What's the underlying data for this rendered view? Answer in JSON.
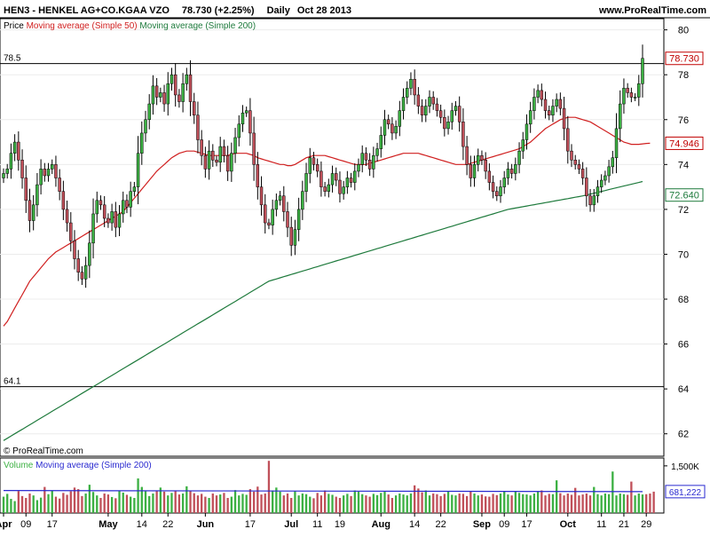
{
  "header": {
    "title": "HEN3 - HENKEL AG+CO.KGAA VZO",
    "last_price": "78.730 (+2.25%)",
    "interval": "Daily",
    "date": "Oct 28 2013",
    "site": "www.ProRealTime.com"
  },
  "price_panel": {
    "legend_label": "Price",
    "ma50_label": "Moving average (Simple 50)",
    "ma200_label": "Moving average (Simple 200)",
    "watermark": "© ProRealTime.com"
  },
  "volume_panel": {
    "legend_label": "Volume",
    "ma_label": "Moving average (Simple 200)"
  },
  "colors": {
    "up": "#3cb043",
    "down": "#c0505a",
    "ma50": "#d02020",
    "ma200": "#1e7a3c",
    "vol_ma": "#2a2ad0",
    "last_price_tag": "#c00000",
    "ma50_tag": "#c00000",
    "ma200_tag": "#1e7a3c"
  },
  "chart_data": [
    {
      "type": "candlestick",
      "panel": "price",
      "ylim": [
        61,
        80.5
      ],
      "y_ticks": [
        62,
        64,
        66,
        68,
        70,
        72,
        74,
        76,
        78,
        80
      ],
      "x_labels": [
        "Apr",
        "09",
        "17",
        "May",
        "14",
        "22",
        "Jun",
        "17",
        "Jul",
        "11",
        "19",
        "Aug",
        "14",
        "22",
        "Sep",
        "09",
        "17",
        "Oct",
        "11",
        "21",
        "29"
      ],
      "x_label_index": [
        0,
        6,
        13,
        28,
        37,
        44,
        54,
        66,
        77,
        84,
        90,
        101,
        110,
        117,
        128,
        134,
        140,
        151,
        160,
        166,
        172
      ],
      "close": [
        73.6,
        73.8,
        74.5,
        75.0,
        74.2,
        73.4,
        72.4,
        71.5,
        72.2,
        73.1,
        73.8,
        73.5,
        73.8,
        74.0,
        73.4,
        72.8,
        72.0,
        71.4,
        70.6,
        69.8,
        69.2,
        68.9,
        69.5,
        70.5,
        71.8,
        72.4,
        72.2,
        71.6,
        71.4,
        71.9,
        71.2,
        71.8,
        72.4,
        72.1,
        72.8,
        73.0,
        74.5,
        75.4,
        76.0,
        76.7,
        77.5,
        77.0,
        77.2,
        76.7,
        77.6,
        78.0,
        77.1,
        76.8,
        77.6,
        78.0,
        76.8,
        76.2,
        75.1,
        74.4,
        73.8,
        74.6,
        74.2,
        74.1,
        74.8,
        74.4,
        73.7,
        74.5,
        75.2,
        75.8,
        76.3,
        76.4,
        75.4,
        74.0,
        73.0,
        72.2,
        71.4,
        71.3,
        72.0,
        72.4,
        72.6,
        71.9,
        71.2,
        70.4,
        71.1,
        72.0,
        72.8,
        73.6,
        74.3,
        74.0,
        73.7,
        73.0,
        72.8,
        73.1,
        73.6,
        73.3,
        72.7,
        73.0,
        73.4,
        73.2,
        73.7,
        74.0,
        74.5,
        74.2,
        73.8,
        74.4,
        74.7,
        75.3,
        76.0,
        75.8,
        75.4,
        75.7,
        76.4,
        77.0,
        77.4,
        77.8,
        77.1,
        76.6,
        76.2,
        76.6,
        77.0,
        76.7,
        76.4,
        76.1,
        75.6,
        75.9,
        76.4,
        76.6,
        75.9,
        74.8,
        74.0,
        73.4,
        74.0,
        74.4,
        74.2,
        73.7,
        73.2,
        72.8,
        72.6,
        73.0,
        73.4,
        73.8,
        73.6,
        74.0,
        74.6,
        75.1,
        75.8,
        76.4,
        77.0,
        77.3,
        76.9,
        76.4,
        76.2,
        76.6,
        76.9,
        76.5,
        75.6,
        74.6,
        74.2,
        74.0,
        73.8,
        73.4,
        72.6,
        72.2,
        72.6,
        73.0,
        73.3,
        73.5,
        73.9,
        74.3,
        75.6,
        76.7,
        77.4,
        77.2,
        77.0,
        77.0,
        77.6,
        78.73
      ],
      "series": [
        {
          "name": "Moving average (Simple 50)",
          "values": [
            66.8,
            67.0,
            67.3,
            67.6,
            67.9,
            68.2,
            68.5,
            68.8,
            69.0,
            69.2,
            69.4,
            69.6,
            69.8,
            69.95,
            70.1,
            70.2,
            70.3,
            70.4,
            70.5,
            70.6,
            70.7,
            70.8,
            70.9,
            71.0,
            71.1,
            71.2,
            71.3,
            71.4,
            71.5,
            71.6,
            71.7,
            71.8,
            71.9,
            72.1,
            72.3,
            72.5,
            72.7,
            72.9,
            73.1,
            73.3,
            73.5,
            73.7,
            73.85,
            74.0,
            74.15,
            74.3,
            74.4,
            74.5,
            74.55,
            74.6,
            74.6,
            74.6,
            74.55,
            74.5,
            74.45,
            74.4,
            74.4,
            74.4,
            74.4,
            74.4,
            74.4,
            74.45,
            74.5,
            74.5,
            74.5,
            74.5,
            74.45,
            74.4,
            74.3,
            74.25,
            74.2,
            74.15,
            74.1,
            74.05,
            74.0,
            74.0,
            73.95,
            73.95,
            74.0,
            74.1,
            74.2,
            74.3,
            74.35,
            74.4,
            74.4,
            74.4,
            74.4,
            74.35,
            74.3,
            74.25,
            74.2,
            74.15,
            74.1,
            74.05,
            74.0,
            74.0,
            74.0,
            74.0,
            74.05,
            74.1,
            74.15,
            74.2,
            74.25,
            74.3,
            74.35,
            74.4,
            74.45,
            74.5,
            74.5,
            74.5,
            74.5,
            74.5,
            74.45,
            74.4,
            74.35,
            74.3,
            74.25,
            74.2,
            74.15,
            74.1,
            74.05,
            74.0,
            74.0,
            74.0,
            74.0,
            74.05,
            74.1,
            74.15,
            74.2,
            74.25,
            74.3,
            74.35,
            74.4,
            74.45,
            74.5,
            74.55,
            74.6,
            74.65,
            74.7,
            74.8,
            74.9,
            75.0,
            75.15,
            75.3,
            75.45,
            75.6,
            75.7,
            75.8,
            75.9,
            76.0,
            76.05,
            76.1,
            76.1,
            76.1,
            76.05,
            76.0,
            75.95,
            75.9,
            75.8,
            75.7,
            75.6,
            75.5,
            75.4,
            75.3,
            75.2,
            75.1,
            75.0,
            74.95,
            74.9,
            74.9,
            74.9,
            74.92,
            74.94,
            74.946
          ]
        },
        {
          "name": "Moving average (Simple 200)",
          "values": [
            61.7,
            61.8,
            61.9,
            62.0,
            62.1,
            62.2,
            62.3,
            62.4,
            62.5,
            62.6,
            62.7,
            62.8,
            62.9,
            63.0,
            63.1,
            63.2,
            63.3,
            63.4,
            63.5,
            63.6,
            63.7,
            63.8,
            63.9,
            64.0,
            64.1,
            64.2,
            64.3,
            64.4,
            64.5,
            64.6,
            64.7,
            64.8,
            64.9,
            65.0,
            65.1,
            65.2,
            65.3,
            65.4,
            65.5,
            65.6,
            65.7,
            65.8,
            65.9,
            66.0,
            66.1,
            66.2,
            66.3,
            66.4,
            66.5,
            66.6,
            66.7,
            66.8,
            66.9,
            67.0,
            67.1,
            67.2,
            67.3,
            67.4,
            67.5,
            67.6,
            67.7,
            67.8,
            67.9,
            68.0,
            68.1,
            68.2,
            68.3,
            68.4,
            68.5,
            68.6,
            68.7,
            68.8,
            68.85,
            68.9,
            68.95,
            69.0,
            69.05,
            69.1,
            69.15,
            69.2,
            69.25,
            69.3,
            69.35,
            69.4,
            69.45,
            69.5,
            69.55,
            69.6,
            69.65,
            69.7,
            69.75,
            69.8,
            69.85,
            69.9,
            69.95,
            70.0,
            70.05,
            70.1,
            70.15,
            70.2,
            70.25,
            70.3,
            70.35,
            70.4,
            70.45,
            70.5,
            70.55,
            70.6,
            70.65,
            70.7,
            70.75,
            70.8,
            70.85,
            70.9,
            70.95,
            71.0,
            71.05,
            71.1,
            71.15,
            71.2,
            71.25,
            71.3,
            71.35,
            71.4,
            71.45,
            71.5,
            71.55,
            71.6,
            71.65,
            71.7,
            71.75,
            71.8,
            71.85,
            71.9,
            71.95,
            72.0,
            72.03,
            72.06,
            72.09,
            72.12,
            72.15,
            72.18,
            72.21,
            72.24,
            72.27,
            72.3,
            72.33,
            72.36,
            72.39,
            72.42,
            72.45,
            72.48,
            72.51,
            72.54,
            72.57,
            72.6,
            72.64,
            72.68,
            72.72,
            72.76,
            72.8,
            72.84,
            72.88,
            72.92,
            72.96,
            73.0,
            73.04,
            73.08,
            73.12,
            73.16,
            73.2,
            73.24,
            73.28,
            72.64
          ]
        }
      ],
      "horizontal_lines": [
        {
          "value": 78.5,
          "label": "78.5"
        },
        {
          "value": 64.1,
          "label": "64.1"
        }
      ],
      "price_tags": [
        {
          "value": 78.73,
          "label": "78.730",
          "color_key": "last_price_tag"
        },
        {
          "value": 74.946,
          "label": "74.946",
          "color_key": "ma50_tag"
        },
        {
          "value": 72.64,
          "label": "72.640",
          "color_key": "ma200_tag"
        }
      ]
    },
    {
      "type": "bar",
      "panel": "volume",
      "ylim": [
        0,
        1750000
      ],
      "y_ticks": [
        {
          "value": 1500000,
          "label": "1,500K"
        }
      ],
      "ma_value": 681222,
      "ma_label": "681,222",
      "values": [
        520000,
        610000,
        450000,
        380000,
        700000,
        540000,
        480000,
        620000,
        560000,
        410000,
        490000,
        830000,
        600000,
        720000,
        520000,
        460000,
        640000,
        580000,
        690000,
        810000,
        760000,
        540000,
        620000,
        900000,
        670000,
        560000,
        480000,
        620000,
        590000,
        510000,
        470000,
        720000,
        650000,
        580000,
        520000,
        480000,
        1100000,
        830000,
        690000,
        540000,
        620000,
        720000,
        810000,
        680000,
        560000,
        640000,
        720000,
        590000,
        620000,
        850000,
        700000,
        630000,
        560000,
        610000,
        520000,
        480000,
        620000,
        560000,
        590000,
        640000,
        480000,
        520000,
        730000,
        560000,
        610000,
        580000,
        760000,
        680000,
        840000,
        590000,
        620000,
        1660000,
        720000,
        810000,
        680000,
        560000,
        620000,
        480000,
        690000,
        560000,
        620000,
        600000,
        520000,
        470000,
        640000,
        560000,
        720000,
        610000,
        580000,
        520000,
        480000,
        560000,
        610000,
        540000,
        720000,
        680000,
        600000,
        560000,
        520000,
        610000,
        570000,
        640000,
        680000,
        590000,
        480000,
        560000,
        620000,
        590000,
        560000,
        620000,
        880000,
        780000,
        660000,
        720000,
        560000,
        620000,
        600000,
        540000,
        610000,
        690000,
        580000,
        560000,
        620000,
        610000,
        540000,
        700000,
        620000,
        560000,
        590000,
        530000,
        520000,
        610000,
        570000,
        620000,
        680000,
        590000,
        560000,
        700000,
        640000,
        600000,
        590000,
        560000,
        620000,
        690000,
        720000,
        560000,
        610000,
        600000,
        1040000,
        630000,
        560000,
        620000,
        580000,
        800000,
        560000,
        590000,
        620000,
        560000,
        830000,
        600000,
        560000,
        620000,
        600000,
        1320000,
        560000,
        620000,
        600000,
        580000,
        1000000,
        560000,
        620000,
        590000,
        600000,
        620000,
        680000
      ]
    }
  ]
}
